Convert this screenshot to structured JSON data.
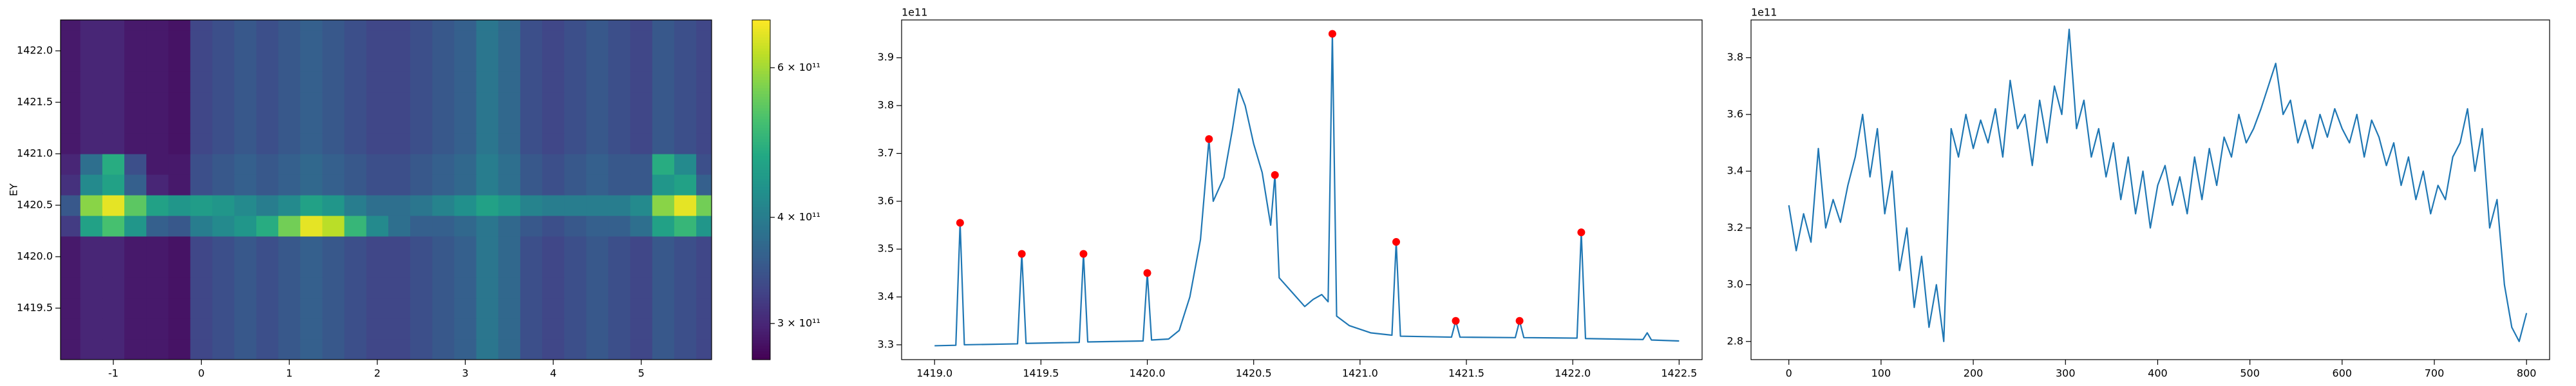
{
  "chart_data": [
    {
      "type": "heatmap",
      "ylabel": "EY",
      "x": [
        -1.5,
        -1.25,
        -1.0,
        -0.75,
        -0.5,
        -0.25,
        0,
        0.25,
        0.5,
        0.75,
        1.0,
        1.25,
        1.5,
        1.75,
        2.0,
        2.25,
        2.5,
        2.75,
        3.0,
        3.25,
        3.5,
        3.75,
        4.0,
        4.25,
        4.5,
        4.75,
        5.0,
        5.25,
        5.5,
        5.75
      ],
      "y": [
        1419.1,
        1419.3,
        1419.5,
        1419.7,
        1419.9,
        1420.1,
        1420.3,
        1420.5,
        1420.7,
        1420.9,
        1421.1,
        1421.3,
        1421.5,
        1421.7,
        1421.9,
        1422.1,
        1422.3
      ],
      "z": [
        [
          2.9,
          3.0,
          3.0,
          2.9,
          2.9,
          2.85,
          3.3,
          3.4,
          3.5,
          3.4,
          3.5,
          3.6,
          3.5,
          3.4,
          3.3,
          3.3,
          3.4,
          3.5,
          3.6,
          3.9,
          3.7,
          3.4,
          3.3,
          3.4,
          3.5,
          3.4,
          3.3,
          3.5,
          3.4,
          3.3
        ],
        [
          2.9,
          3.0,
          3.0,
          2.9,
          2.9,
          2.85,
          3.3,
          3.4,
          3.5,
          3.4,
          3.5,
          3.6,
          3.5,
          3.4,
          3.3,
          3.3,
          3.4,
          3.5,
          3.6,
          3.9,
          3.7,
          3.4,
          3.3,
          3.4,
          3.5,
          3.4,
          3.3,
          3.5,
          3.4,
          3.3
        ],
        [
          2.9,
          3.0,
          3.0,
          2.9,
          2.9,
          2.85,
          3.3,
          3.4,
          3.5,
          3.4,
          3.5,
          3.6,
          3.5,
          3.4,
          3.3,
          3.3,
          3.4,
          3.5,
          3.6,
          3.9,
          3.7,
          3.4,
          3.3,
          3.4,
          3.5,
          3.4,
          3.3,
          3.5,
          3.4,
          3.3
        ],
        [
          2.9,
          3.0,
          3.0,
          2.9,
          2.9,
          2.85,
          3.3,
          3.4,
          3.5,
          3.4,
          3.5,
          3.6,
          3.5,
          3.4,
          3.3,
          3.3,
          3.4,
          3.5,
          3.6,
          3.9,
          3.7,
          3.4,
          3.3,
          3.4,
          3.5,
          3.4,
          3.3,
          3.5,
          3.4,
          3.3
        ],
        [
          2.9,
          3.0,
          3.0,
          2.9,
          2.9,
          2.85,
          3.3,
          3.4,
          3.5,
          3.4,
          3.5,
          3.6,
          3.5,
          3.4,
          3.3,
          3.3,
          3.4,
          3.5,
          3.6,
          3.9,
          3.7,
          3.4,
          3.3,
          3.4,
          3.5,
          3.4,
          3.3,
          3.5,
          3.4,
          3.3
        ],
        [
          2.9,
          3.0,
          3.0,
          2.9,
          2.9,
          2.85,
          3.3,
          3.4,
          3.5,
          3.4,
          3.5,
          3.6,
          3.5,
          3.4,
          3.3,
          3.3,
          3.4,
          3.5,
          3.6,
          3.9,
          3.7,
          3.4,
          3.3,
          3.4,
          3.5,
          3.4,
          3.3,
          3.5,
          3.4,
          3.3
        ],
        [
          3.2,
          4.6,
          5.2,
          4.4,
          3.6,
          3.5,
          4.0,
          4.2,
          4.4,
          4.8,
          5.6,
          6.6,
          6.2,
          5.0,
          4.2,
          3.8,
          3.6,
          3.6,
          3.7,
          3.9,
          3.7,
          3.5,
          3.4,
          3.5,
          3.6,
          3.6,
          3.8,
          4.6,
          5.0,
          4.4
        ],
        [
          3.5,
          5.8,
          6.6,
          5.4,
          4.6,
          4.4,
          4.5,
          4.4,
          4.2,
          4.0,
          4.2,
          4.6,
          4.4,
          4.0,
          3.8,
          3.8,
          3.9,
          4.1,
          4.3,
          4.6,
          4.4,
          4.1,
          4.0,
          4.0,
          4.0,
          4.0,
          4.2,
          5.8,
          6.6,
          5.6
        ],
        [
          3.1,
          4.2,
          4.6,
          3.6,
          3.0,
          2.9,
          3.4,
          3.5,
          3.6,
          3.5,
          3.6,
          3.7,
          3.6,
          3.5,
          3.4,
          3.4,
          3.5,
          3.6,
          3.7,
          4.0,
          3.8,
          3.5,
          3.4,
          3.5,
          3.6,
          3.5,
          3.5,
          4.4,
          4.6,
          3.6
        ],
        [
          3.0,
          3.8,
          4.8,
          3.4,
          2.9,
          2.9,
          3.4,
          3.5,
          3.6,
          3.5,
          3.6,
          3.7,
          3.6,
          3.5,
          3.4,
          3.4,
          3.5,
          3.6,
          3.7,
          4.0,
          3.8,
          3.5,
          3.4,
          3.5,
          3.6,
          3.5,
          3.5,
          4.8,
          4.2,
          3.4
        ],
        [
          2.9,
          3.0,
          3.0,
          2.9,
          2.9,
          2.85,
          3.3,
          3.4,
          3.5,
          3.4,
          3.5,
          3.6,
          3.5,
          3.4,
          3.3,
          3.3,
          3.4,
          3.5,
          3.6,
          3.9,
          3.7,
          3.4,
          3.3,
          3.4,
          3.5,
          3.4,
          3.3,
          3.5,
          3.4,
          3.3
        ],
        [
          2.9,
          3.0,
          3.0,
          2.9,
          2.9,
          2.85,
          3.3,
          3.4,
          3.5,
          3.4,
          3.5,
          3.6,
          3.5,
          3.4,
          3.3,
          3.3,
          3.4,
          3.5,
          3.6,
          3.9,
          3.7,
          3.4,
          3.3,
          3.4,
          3.5,
          3.4,
          3.3,
          3.5,
          3.4,
          3.3
        ],
        [
          2.9,
          3.0,
          3.0,
          2.9,
          2.9,
          2.85,
          3.3,
          3.4,
          3.5,
          3.4,
          3.5,
          3.6,
          3.5,
          3.4,
          3.3,
          3.3,
          3.4,
          3.5,
          3.6,
          3.9,
          3.7,
          3.4,
          3.3,
          3.4,
          3.5,
          3.4,
          3.3,
          3.5,
          3.4,
          3.3
        ],
        [
          2.9,
          3.0,
          3.0,
          2.9,
          2.9,
          2.85,
          3.3,
          3.4,
          3.5,
          3.4,
          3.5,
          3.6,
          3.5,
          3.4,
          3.3,
          3.3,
          3.4,
          3.5,
          3.6,
          3.9,
          3.7,
          3.4,
          3.3,
          3.4,
          3.5,
          3.4,
          3.3,
          3.5,
          3.4,
          3.3
        ],
        [
          2.9,
          3.0,
          3.0,
          2.9,
          2.9,
          2.85,
          3.3,
          3.4,
          3.5,
          3.4,
          3.5,
          3.6,
          3.5,
          3.4,
          3.3,
          3.3,
          3.4,
          3.5,
          3.6,
          3.9,
          3.7,
          3.4,
          3.3,
          3.4,
          3.5,
          3.4,
          3.3,
          3.5,
          3.4,
          3.3
        ],
        [
          2.9,
          3.0,
          3.0,
          2.9,
          2.9,
          2.85,
          3.3,
          3.4,
          3.5,
          3.4,
          3.5,
          3.6,
          3.5,
          3.4,
          3.3,
          3.3,
          3.4,
          3.5,
          3.6,
          3.9,
          3.7,
          3.4,
          3.3,
          3.4,
          3.5,
          3.4,
          3.3,
          3.5,
          3.4,
          3.3
        ],
        [
          2.9,
          3.0,
          3.0,
          2.9,
          2.9,
          2.85,
          3.3,
          3.4,
          3.5,
          3.4,
          3.5,
          3.6,
          3.5,
          3.4,
          3.3,
          3.3,
          3.4,
          3.5,
          3.6,
          3.9,
          3.7,
          3.4,
          3.3,
          3.4,
          3.5,
          3.4,
          3.3,
          3.5,
          3.4,
          3.3
        ]
      ],
      "xlim": [
        -1.6,
        5.8
      ],
      "ylim": [
        1419.0,
        1422.3
      ],
      "xticks": [
        -1,
        0,
        1,
        2,
        3,
        4,
        5
      ],
      "yticks": [
        1419.5,
        {
          "value": 1420,
          "label": "1420.0"
        },
        1420.5,
        {
          "value": 1421,
          "label": "1421.0"
        },
        1421.5,
        {
          "value": 1422,
          "label": "1422.0"
        }
      ],
      "colorbar": {
        "cmap": "viridis",
        "log": true,
        "clim": [
          2.72,
          6.83
        ],
        "ticks": [
          {
            "value": 3,
            "label": "3 × 10¹¹"
          },
          {
            "value": 4,
            "label": "4 × 10¹¹"
          },
          {
            "value": 6,
            "label": "6 × 10¹¹"
          }
        ]
      }
    },
    {
      "type": "line",
      "offset_text": "1e11",
      "color": "#1f77b4",
      "x": [
        1419.0,
        1419.1,
        1419.12,
        1419.14,
        1419.39,
        1419.41,
        1419.43,
        1419.68,
        1419.7,
        1419.72,
        1419.98,
        1420.0,
        1420.02,
        1420.1,
        1420.15,
        1420.2,
        1420.25,
        1420.29,
        1420.31,
        1420.36,
        1420.4,
        1420.43,
        1420.46,
        1420.5,
        1420.54,
        1420.58,
        1420.6,
        1420.62,
        1420.68,
        1420.74,
        1420.78,
        1420.82,
        1420.85,
        1420.87,
        1420.89,
        1420.95,
        1421.05,
        1421.15,
        1421.17,
        1421.19,
        1421.43,
        1421.45,
        1421.47,
        1421.73,
        1421.75,
        1421.77,
        1422.02,
        1422.04,
        1422.06,
        1422.33,
        1422.35,
        1422.37,
        1422.5
      ],
      "values": [
        3.298,
        3.299,
        3.555,
        3.3,
        3.302,
        3.49,
        3.303,
        3.305,
        3.49,
        3.306,
        3.308,
        3.45,
        3.31,
        3.312,
        3.33,
        3.4,
        3.52,
        3.73,
        3.6,
        3.65,
        3.75,
        3.835,
        3.8,
        3.72,
        3.66,
        3.55,
        3.655,
        3.44,
        3.41,
        3.38,
        3.395,
        3.405,
        3.39,
        3.95,
        3.36,
        3.34,
        3.325,
        3.32,
        3.515,
        3.318,
        3.316,
        3.35,
        3.316,
        3.315,
        3.35,
        3.315,
        3.314,
        3.535,
        3.313,
        3.311,
        3.325,
        3.31,
        3.308
      ],
      "markers": {
        "color": "red",
        "x": [
          1419.12,
          1419.41,
          1419.7,
          1420.0,
          1420.29,
          1420.6,
          1420.87,
          1421.17,
          1421.45,
          1421.75,
          1422.04
        ],
        "values": [
          3.555,
          3.49,
          3.49,
          3.45,
          3.73,
          3.655,
          3.95,
          3.515,
          3.35,
          3.35,
          3.535
        ]
      },
      "xlim": [
        1418.845,
        1422.608
      ],
      "ylim": [
        3.269,
        3.979
      ],
      "xticks": [
        {
          "value": 1419,
          "label": "1419.0"
        },
        1419.5,
        {
          "value": 1420,
          "label": "1420.0"
        },
        1420.5,
        {
          "value": 1421,
          "label": "1421.0"
        },
        1421.5,
        {
          "value": 1422,
          "label": "1422.0"
        },
        1422.5
      ],
      "yticks": [
        3.3,
        3.4,
        3.5,
        3.6,
        3.7,
        3.8,
        3.9
      ]
    },
    {
      "type": "line",
      "offset_text": "1e11",
      "color": "#1f77b4",
      "x": [
        0,
        8,
        16,
        24,
        32,
        40,
        48,
        56,
        64,
        72,
        80,
        88,
        96,
        104,
        112,
        120,
        128,
        136,
        144,
        152,
        160,
        168,
        176,
        184,
        192,
        200,
        208,
        216,
        224,
        232,
        240,
        248,
        256,
        264,
        272,
        280,
        288,
        296,
        304,
        312,
        320,
        328,
        336,
        344,
        352,
        360,
        368,
        376,
        384,
        392,
        400,
        408,
        416,
        424,
        432,
        440,
        448,
        456,
        464,
        472,
        480,
        488,
        496,
        504,
        512,
        520,
        528,
        536,
        544,
        552,
        560,
        568,
        576,
        584,
        592,
        600,
        608,
        616,
        624,
        632,
        640,
        648,
        656,
        664,
        672,
        680,
        688,
        696,
        704,
        712,
        720,
        728,
        736,
        744,
        752,
        760,
        768,
        776,
        784,
        792,
        800
      ],
      "values": [
        3.28,
        3.12,
        3.25,
        3.15,
        3.48,
        3.2,
        3.3,
        3.22,
        3.35,
        3.45,
        3.6,
        3.38,
        3.55,
        3.25,
        3.4,
        3.05,
        3.2,
        2.92,
        3.1,
        2.85,
        3.0,
        2.8,
        3.55,
        3.45,
        3.6,
        3.48,
        3.58,
        3.5,
        3.62,
        3.45,
        3.72,
        3.55,
        3.6,
        3.42,
        3.65,
        3.5,
        3.7,
        3.6,
        3.9,
        3.55,
        3.65,
        3.45,
        3.55,
        3.38,
        3.5,
        3.3,
        3.45,
        3.25,
        3.4,
        3.2,
        3.35,
        3.42,
        3.28,
        3.38,
        3.25,
        3.45,
        3.3,
        3.48,
        3.35,
        3.52,
        3.45,
        3.6,
        3.5,
        3.55,
        3.62,
        3.7,
        3.78,
        3.6,
        3.65,
        3.5,
        3.58,
        3.48,
        3.6,
        3.52,
        3.62,
        3.55,
        3.5,
        3.6,
        3.45,
        3.58,
        3.52,
        3.42,
        3.5,
        3.35,
        3.45,
        3.3,
        3.4,
        3.25,
        3.35,
        3.3,
        3.45,
        3.5,
        3.62,
        3.4,
        3.55,
        3.2,
        3.3,
        3.0,
        2.85,
        2.8,
        2.9
      ],
      "xlim": [
        -41,
        825
      ],
      "ylim": [
        2.736,
        3.933
      ],
      "xticks": [
        0,
        100,
        200,
        300,
        400,
        500,
        600,
        700,
        800
      ],
      "yticks": [
        2.8,
        {
          "value": 3,
          "label": "3.0"
        },
        3.2,
        3.4,
        3.6,
        3.8
      ]
    }
  ]
}
